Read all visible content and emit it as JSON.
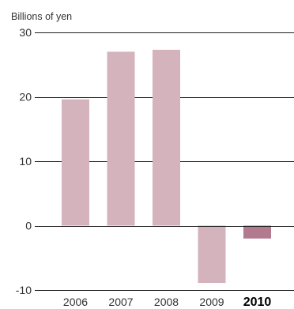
{
  "chart_data": {
    "type": "bar",
    "unit_label": "Billions of yen",
    "categories": [
      "2006",
      "2007",
      "2008",
      "2009",
      "2010"
    ],
    "emphasized_category": "2010",
    "values": [
      19.6,
      27.0,
      27.3,
      -8.9,
      -2.0
    ],
    "ylim": [
      -10,
      30
    ],
    "yticks": [
      30,
      20,
      10,
      0,
      -10
    ],
    "ytick_labels": [
      "30",
      "20",
      "10",
      "0",
      "-10"
    ],
    "grid": true,
    "legend": "none",
    "colors": {
      "bar": "#d4b3bc",
      "bar_emphasized": "#b17a8e",
      "gridline": "#1f1f1f"
    }
  }
}
